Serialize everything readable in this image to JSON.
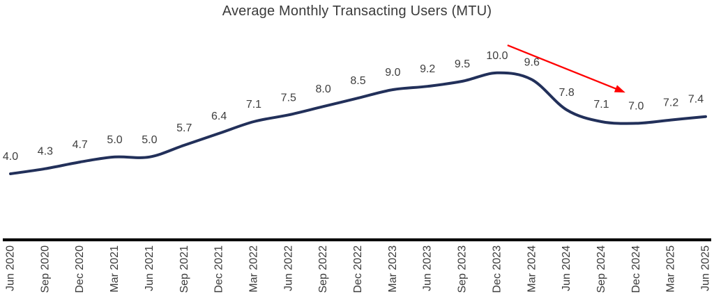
{
  "chart_data": {
    "type": "line",
    "title": "Average Monthly Transacting Users (MTU)",
    "categories": [
      "Jun 2020",
      "Sep 2020",
      "Dec 2020",
      "Mar 2021",
      "Jun 2021",
      "Sep 2021",
      "Dec 2021",
      "Mar 2022",
      "Jun 2022",
      "Sep 2022",
      "Dec 2022",
      "Mar 2023",
      "Jun 2023",
      "Sep 2023",
      "Dec 2023",
      "Mar 2024",
      "Jun 2024",
      "Sep 2024",
      "Dec 2024",
      "Mar 2025",
      "Jun 2025"
    ],
    "values": [
      4.0,
      4.3,
      4.7,
      5.0,
      5.0,
      5.7,
      6.4,
      7.1,
      7.5,
      8.0,
      8.5,
      9.0,
      9.2,
      9.5,
      10.0,
      9.6,
      7.8,
      7.1,
      7.0,
      7.2,
      7.4
    ],
    "data_labels_visible": true,
    "smooth": true,
    "legend": "none",
    "y_axis_visible": false,
    "x_axis_label_rotation": -90,
    "colors": {
      "series_line": "#22305a",
      "data_label": "#3d3d3d",
      "tick_label": "#3a3a3a",
      "axis_line": "#000000",
      "title": "#3a3a3a",
      "annotation_arrow": "#ff0000"
    },
    "annotation": {
      "type": "arrow",
      "description": "downward trend arrow from peak toward trough",
      "color": "#ff0000",
      "from": {
        "x_index": 14.3,
        "value": 11.64
      },
      "to": {
        "x_index": 17.69,
        "value": 8.83
      }
    }
  }
}
